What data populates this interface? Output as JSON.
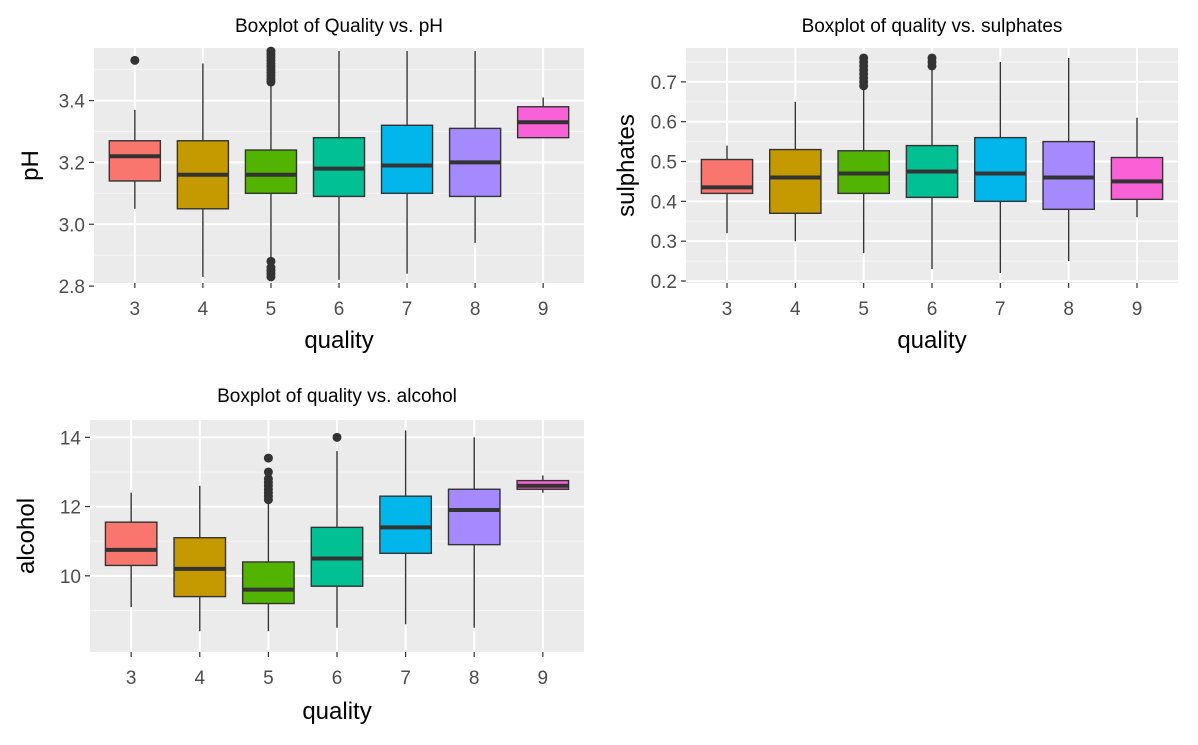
{
  "chart_data": [
    {
      "type": "boxplot",
      "title": "Boxplot of Quality vs. pH",
      "xlabel": "quality",
      "ylabel": "pH",
      "ylim": [
        2.81,
        3.57
      ],
      "yticks": [
        2.8,
        3.0,
        3.2,
        3.4
      ],
      "ytick_labels": [
        "2.8",
        "3.0",
        "3.2",
        "3.4"
      ],
      "categories": [
        "3",
        "4",
        "5",
        "6",
        "7",
        "8",
        "9"
      ],
      "boxes": [
        {
          "q1": 3.14,
          "median": 3.22,
          "q3": 3.27,
          "whisker_low": 3.05,
          "whisker_high": 3.37,
          "outliers": [
            3.53
          ]
        },
        {
          "q1": 3.05,
          "median": 3.16,
          "q3": 3.27,
          "whisker_low": 2.83,
          "whisker_high": 3.52,
          "outliers": []
        },
        {
          "q1": 3.1,
          "median": 3.16,
          "q3": 3.24,
          "whisker_low": 2.89,
          "whisker_high": 3.45,
          "outliers": [
            2.83,
            2.84,
            2.85,
            2.86,
            2.88,
            3.46,
            3.47,
            3.48,
            3.49,
            3.5,
            3.51,
            3.52,
            3.53,
            3.54,
            3.55,
            3.56
          ]
        },
        {
          "q1": 3.09,
          "median": 3.18,
          "q3": 3.28,
          "whisker_low": 2.82,
          "whisker_high": 3.56,
          "outliers": []
        },
        {
          "q1": 3.1,
          "median": 3.19,
          "q3": 3.32,
          "whisker_low": 2.84,
          "whisker_high": 3.56,
          "outliers": []
        },
        {
          "q1": 3.09,
          "median": 3.2,
          "q3": 3.31,
          "whisker_low": 2.94,
          "whisker_high": 3.56,
          "outliers": []
        },
        {
          "q1": 3.28,
          "median": 3.33,
          "q3": 3.38,
          "whisker_low": 3.28,
          "whisker_high": 3.41,
          "outliers": []
        }
      ],
      "colors": [
        "#F8766D",
        "#C49A00",
        "#53B400",
        "#00C094",
        "#00B6EB",
        "#A58AFF",
        "#FB61D7"
      ],
      "legend": "none",
      "grid": true
    },
    {
      "type": "boxplot",
      "title": "Boxplot of quality vs. sulphates",
      "xlabel": "quality",
      "ylabel": "sulphates",
      "ylim": [
        0.195,
        0.785
      ],
      "yticks": [
        0.2,
        0.3,
        0.4,
        0.5,
        0.6,
        0.7
      ],
      "ytick_labels": [
        "0.2",
        "0.3",
        "0.4",
        "0.5",
        "0.6",
        "0.7"
      ],
      "categories": [
        "3",
        "4",
        "5",
        "6",
        "7",
        "8",
        "9"
      ],
      "boxes": [
        {
          "q1": 0.42,
          "median": 0.435,
          "q3": 0.505,
          "whisker_low": 0.32,
          "whisker_high": 0.54,
          "outliers": []
        },
        {
          "q1": 0.37,
          "median": 0.46,
          "q3": 0.53,
          "whisker_low": 0.3,
          "whisker_high": 0.65,
          "outliers": []
        },
        {
          "q1": 0.42,
          "median": 0.47,
          "q3": 0.527,
          "whisker_low": 0.27,
          "whisker_high": 0.685,
          "outliers": [
            0.69,
            0.7,
            0.71,
            0.72,
            0.73,
            0.74,
            0.75,
            0.76
          ]
        },
        {
          "q1": 0.41,
          "median": 0.475,
          "q3": 0.54,
          "whisker_low": 0.23,
          "whisker_high": 0.735,
          "outliers": [
            0.74,
            0.75,
            0.76
          ]
        },
        {
          "q1": 0.4,
          "median": 0.47,
          "q3": 0.56,
          "whisker_low": 0.22,
          "whisker_high": 0.75,
          "outliers": []
        },
        {
          "q1": 0.38,
          "median": 0.46,
          "q3": 0.55,
          "whisker_low": 0.25,
          "whisker_high": 0.76,
          "outliers": []
        },
        {
          "q1": 0.405,
          "median": 0.45,
          "q3": 0.51,
          "whisker_low": 0.36,
          "whisker_high": 0.61,
          "outliers": []
        }
      ],
      "colors": [
        "#F8766D",
        "#C49A00",
        "#53B400",
        "#00C094",
        "#00B6EB",
        "#A58AFF",
        "#FB61D7"
      ],
      "legend": "none",
      "grid": true
    },
    {
      "type": "boxplot",
      "title": "Boxplot of quality vs. alcohol",
      "xlabel": "quality",
      "ylabel": "alcohol",
      "ylim": [
        7.8,
        14.5
      ],
      "yticks": [
        10,
        12,
        14
      ],
      "ytick_labels": [
        "10",
        "12",
        "14"
      ],
      "categories": [
        "3",
        "4",
        "5",
        "6",
        "7",
        "8",
        "9"
      ],
      "boxes": [
        {
          "q1": 10.3,
          "median": 10.75,
          "q3": 11.55,
          "whisker_low": 9.1,
          "whisker_high": 12.4,
          "outliers": []
        },
        {
          "q1": 9.4,
          "median": 10.2,
          "q3": 11.1,
          "whisker_low": 8.4,
          "whisker_high": 12.6,
          "outliers": []
        },
        {
          "q1": 9.2,
          "median": 9.6,
          "q3": 10.4,
          "whisker_low": 8.4,
          "whisker_high": 12.1,
          "outliers": [
            12.2,
            12.3,
            12.4,
            12.5,
            12.6,
            12.7,
            12.8,
            13.0,
            13.4
          ]
        },
        {
          "q1": 9.7,
          "median": 10.5,
          "q3": 11.4,
          "whisker_low": 8.5,
          "whisker_high": 13.6,
          "outliers": [
            14.0
          ]
        },
        {
          "q1": 10.65,
          "median": 11.4,
          "q3": 12.3,
          "whisker_low": 8.6,
          "whisker_high": 14.2,
          "outliers": []
        },
        {
          "q1": 10.9,
          "median": 11.9,
          "q3": 12.5,
          "whisker_low": 8.5,
          "whisker_high": 14.0,
          "outliers": []
        },
        {
          "q1": 12.5,
          "median": 12.6,
          "q3": 12.75,
          "whisker_low": 12.4,
          "whisker_high": 12.9,
          "outliers": []
        }
      ],
      "colors": [
        "#F8766D",
        "#C49A00",
        "#53B400",
        "#00C094",
        "#00B6EB",
        "#A58AFF",
        "#FB61D7"
      ],
      "legend": "none",
      "grid": true
    }
  ]
}
